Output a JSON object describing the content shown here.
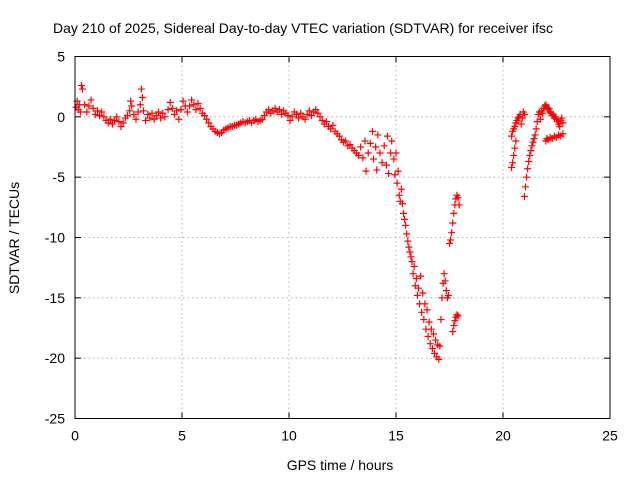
{
  "chart_data": {
    "type": "scatter",
    "title": "Day 210 of 2025, Sidereal Day-to-day VTEC variation (SDTVAR) for receiver ifsc",
    "xlabel": "GPS time / hours",
    "ylabel": "SDTVAR / TECUs",
    "xlim": [
      0,
      25
    ],
    "ylim": [
      -25,
      5
    ],
    "x_ticks": [
      0,
      5,
      10,
      15,
      20,
      25
    ],
    "x_tick_labels": [
      "0",
      "5",
      "10",
      "15",
      "20",
      "25"
    ],
    "y_ticks": [
      -25,
      -20,
      -15,
      -10,
      -5,
      0,
      5
    ],
    "y_tick_labels": [
      "-25",
      "-20",
      "-15",
      "-10",
      "-5",
      "0",
      "5"
    ],
    "grid": true,
    "marker": "+",
    "color": "#ff0000",
    "series": [
      {
        "name": "SDTVAR",
        "points": [
          [
            0.05,
            0.8
          ],
          [
            0.1,
            1.3
          ],
          [
            0.15,
            0.6
          ],
          [
            0.2,
            1.0
          ],
          [
            0.25,
            0.4
          ],
          [
            0.3,
            2.6
          ],
          [
            0.35,
            2.3
          ],
          [
            0.45,
            1.0
          ],
          [
            0.55,
            0.4
          ],
          [
            0.65,
            0.9
          ],
          [
            0.75,
            1.4
          ],
          [
            0.85,
            0.7
          ],
          [
            0.95,
            0.2
          ],
          [
            1.05,
            0.5
          ],
          [
            1.15,
            0.1
          ],
          [
            1.25,
            0.4
          ],
          [
            1.35,
            0.0
          ],
          [
            1.45,
            -0.3
          ],
          [
            1.55,
            -0.5
          ],
          [
            1.65,
            -0.2
          ],
          [
            1.75,
            -0.6
          ],
          [
            1.85,
            -0.3
          ],
          [
            1.95,
            0.0
          ],
          [
            2.05,
            -0.4
          ],
          [
            2.15,
            -0.8
          ],
          [
            2.25,
            -0.5
          ],
          [
            2.35,
            -0.1
          ],
          [
            2.45,
            0.1
          ],
          [
            2.55,
            0.5
          ],
          [
            2.6,
            1.3
          ],
          [
            2.65,
            0.9
          ],
          [
            2.75,
            0.2
          ],
          [
            2.85,
            -0.2
          ],
          [
            2.95,
            0.4
          ],
          [
            3.05,
            1.0
          ],
          [
            3.1,
            2.3
          ],
          [
            3.15,
            1.6
          ],
          [
            3.2,
            0.5
          ],
          [
            3.3,
            -0.3
          ],
          [
            3.4,
            0.2
          ],
          [
            3.5,
            -0.1
          ],
          [
            3.6,
            0.3
          ],
          [
            3.7,
            -0.2
          ],
          [
            3.8,
            0.1
          ],
          [
            3.9,
            0.4
          ],
          [
            4.0,
            -0.1
          ],
          [
            4.1,
            0.3
          ],
          [
            4.2,
            0.0
          ],
          [
            4.35,
            0.6
          ],
          [
            4.45,
            1.2
          ],
          [
            4.55,
            0.7
          ],
          [
            4.65,
            0.2
          ],
          [
            4.75,
            0.5
          ],
          [
            4.85,
            -0.2
          ],
          [
            4.95,
            0.6
          ],
          [
            5.05,
            1.3
          ],
          [
            5.15,
            0.9
          ],
          [
            5.25,
            0.4
          ],
          [
            5.35,
            0.9
          ],
          [
            5.45,
            1.4
          ],
          [
            5.55,
            1.0
          ],
          [
            5.65,
            0.6
          ],
          [
            5.75,
            1.1
          ],
          [
            5.85,
            0.7
          ],
          [
            5.95,
            0.3
          ],
          [
            6.05,
            0.1
          ],
          [
            6.15,
            -0.2
          ],
          [
            6.25,
            -0.5
          ],
          [
            6.35,
            -0.8
          ],
          [
            6.45,
            -1.0
          ],
          [
            6.55,
            -1.2
          ],
          [
            6.65,
            -1.3
          ],
          [
            6.75,
            -1.4
          ],
          [
            6.85,
            -1.3
          ],
          [
            6.95,
            -1.1
          ],
          [
            7.05,
            -1.0
          ],
          [
            7.15,
            -0.9
          ],
          [
            7.25,
            -0.8
          ],
          [
            7.35,
            -0.8
          ],
          [
            7.45,
            -0.7
          ],
          [
            7.55,
            -0.7
          ],
          [
            7.65,
            -0.6
          ],
          [
            7.75,
            -0.5
          ],
          [
            7.85,
            -0.4
          ],
          [
            7.95,
            -0.5
          ],
          [
            8.05,
            -0.4
          ],
          [
            8.15,
            -0.3
          ],
          [
            8.25,
            -0.5
          ],
          [
            8.35,
            -0.3
          ],
          [
            8.45,
            -0.2
          ],
          [
            8.55,
            -0.4
          ],
          [
            8.65,
            -0.3
          ],
          [
            8.75,
            -0.2
          ],
          [
            8.85,
            0.1
          ],
          [
            8.95,
            0.4
          ],
          [
            9.05,
            0.6
          ],
          [
            9.15,
            0.3
          ],
          [
            9.25,
            0.5
          ],
          [
            9.35,
            0.7
          ],
          [
            9.45,
            0.4
          ],
          [
            9.55,
            0.6
          ],
          [
            9.65,
            0.2
          ],
          [
            9.75,
            0.5
          ],
          [
            9.85,
            0.3
          ],
          [
            9.95,
            0.1
          ],
          [
            10.05,
            -0.3
          ],
          [
            10.15,
            0.0
          ],
          [
            10.25,
            0.4
          ],
          [
            10.35,
            0.2
          ],
          [
            10.45,
            -0.1
          ],
          [
            10.55,
            0.3
          ],
          [
            10.65,
            0.0
          ],
          [
            10.75,
            -0.2
          ],
          [
            10.85,
            0.2
          ],
          [
            10.95,
            0.5
          ],
          [
            11.05,
            0.1
          ],
          [
            11.15,
            0.4
          ],
          [
            11.25,
            0.6
          ],
          [
            11.35,
            0.3
          ],
          [
            11.45,
            0.0
          ],
          [
            11.55,
            -0.3
          ],
          [
            11.65,
            -0.6
          ],
          [
            11.75,
            -0.4
          ],
          [
            11.85,
            -0.8
          ],
          [
            11.95,
            -1.0
          ],
          [
            12.05,
            -0.7
          ],
          [
            12.15,
            -1.2
          ],
          [
            12.25,
            -1.4
          ],
          [
            12.35,
            -1.6
          ],
          [
            12.45,
            -1.9
          ],
          [
            12.55,
            -2.1
          ],
          [
            12.65,
            -2.0
          ],
          [
            12.75,
            -2.4
          ],
          [
            12.85,
            -2.3
          ],
          [
            12.95,
            -2.6
          ],
          [
            13.05,
            -2.8
          ],
          [
            13.15,
            -3.0
          ],
          [
            13.25,
            -3.2
          ],
          [
            13.35,
            -2.5
          ],
          [
            13.45,
            -3.4
          ],
          [
            13.55,
            -2.0
          ],
          [
            13.6,
            -4.5
          ],
          [
            13.7,
            -3.0
          ],
          [
            13.8,
            -2.2
          ],
          [
            13.9,
            -1.2
          ],
          [
            13.95,
            -3.5
          ],
          [
            14.05,
            -2.5
          ],
          [
            14.1,
            -4.4
          ],
          [
            14.15,
            -1.5
          ],
          [
            14.25,
            -3.0
          ],
          [
            14.35,
            -3.8
          ],
          [
            14.45,
            -2.4
          ],
          [
            14.55,
            -4.0
          ],
          [
            14.6,
            -1.6
          ],
          [
            14.65,
            -4.7
          ],
          [
            14.75,
            -3.0
          ],
          [
            14.8,
            -2.0
          ],
          [
            14.9,
            -3.5
          ],
          [
            14.95,
            -4.8
          ],
          [
            15.0,
            -3.0
          ],
          [
            15.05,
            -5.5
          ],
          [
            15.1,
            -4.5
          ],
          [
            15.15,
            -6.5
          ],
          [
            15.2,
            -7.0
          ],
          [
            15.25,
            -6.0
          ],
          [
            15.3,
            -7.2
          ],
          [
            15.35,
            -8.0
          ],
          [
            15.4,
            -8.5
          ],
          [
            15.45,
            -9.0
          ],
          [
            15.5,
            -9.7
          ],
          [
            15.55,
            -10.3
          ],
          [
            15.6,
            -10.8
          ],
          [
            15.65,
            -11.2
          ],
          [
            15.7,
            -11.6
          ],
          [
            15.75,
            -12.0
          ],
          [
            15.8,
            -13.0
          ],
          [
            15.85,
            -12.4
          ],
          [
            15.9,
            -14.0
          ],
          [
            15.95,
            -13.4
          ],
          [
            16.0,
            -14.8
          ],
          [
            16.05,
            -14.2
          ],
          [
            16.1,
            -15.5
          ],
          [
            16.15,
            -13.2
          ],
          [
            16.2,
            -16.2
          ],
          [
            16.25,
            -14.6
          ],
          [
            16.3,
            -16.8
          ],
          [
            16.35,
            -15.5
          ],
          [
            16.4,
            -17.6
          ],
          [
            16.45,
            -16.0
          ],
          [
            16.5,
            -18.2
          ],
          [
            16.55,
            -17.0
          ],
          [
            16.6,
            -18.8
          ],
          [
            16.65,
            -17.6
          ],
          [
            16.7,
            -19.2
          ],
          [
            16.75,
            -18.0
          ],
          [
            16.8,
            -19.6
          ],
          [
            16.85,
            -18.5
          ],
          [
            16.9,
            -19.9
          ],
          [
            16.95,
            -18.9
          ],
          [
            17.0,
            -20.1
          ],
          [
            17.05,
            -19.0
          ],
          [
            17.1,
            -16.8
          ],
          [
            17.15,
            -15.0
          ],
          [
            17.2,
            -13.8
          ],
          [
            17.25,
            -13.0
          ],
          [
            17.3,
            -13.6
          ],
          [
            17.35,
            -14.4
          ],
          [
            17.4,
            -15.0
          ],
          [
            17.45,
            -14.8
          ],
          [
            17.5,
            -10.5
          ],
          [
            17.55,
            -10.2
          ],
          [
            17.6,
            -9.6
          ],
          [
            17.65,
            -8.8
          ],
          [
            17.7,
            -8.0
          ],
          [
            17.75,
            -7.3
          ],
          [
            17.8,
            -6.8
          ],
          [
            17.85,
            -6.5
          ],
          [
            17.9,
            -6.7
          ],
          [
            17.95,
            -7.3
          ],
          [
            17.65,
            -17.8
          ],
          [
            17.7,
            -17.3
          ],
          [
            17.75,
            -16.9
          ],
          [
            17.8,
            -16.6
          ],
          [
            17.85,
            -16.4
          ],
          [
            17.9,
            -16.5
          ],
          [
            20.4,
            -4.2
          ],
          [
            20.45,
            -3.8
          ],
          [
            20.5,
            -3.2
          ],
          [
            20.55,
            -2.6
          ],
          [
            20.6,
            -2.0
          ],
          [
            20.4,
            -1.6
          ],
          [
            20.45,
            -1.2
          ],
          [
            20.5,
            -1.0
          ],
          [
            20.55,
            -0.8
          ],
          [
            20.6,
            -0.5
          ],
          [
            20.65,
            -0.3
          ],
          [
            20.7,
            -0.1
          ],
          [
            20.75,
            0.0
          ],
          [
            20.8,
            0.2
          ],
          [
            20.85,
            -0.6
          ],
          [
            20.9,
            -0.1
          ],
          [
            20.95,
            0.4
          ],
          [
            21.0,
            0.2
          ],
          [
            21.0,
            -6.6
          ],
          [
            21.05,
            -5.8
          ],
          [
            21.1,
            -5.0
          ],
          [
            21.15,
            -4.3
          ],
          [
            21.2,
            -3.7
          ],
          [
            21.25,
            -3.2
          ],
          [
            21.3,
            -2.8
          ],
          [
            21.35,
            -2.4
          ],
          [
            21.4,
            -2.1
          ],
          [
            21.45,
            -1.8
          ],
          [
            21.5,
            -1.5
          ],
          [
            21.55,
            -1.0
          ],
          [
            21.6,
            -0.4
          ],
          [
            21.65,
            0.2
          ],
          [
            21.7,
            0.4
          ],
          [
            21.75,
            -0.2
          ],
          [
            21.8,
            0.5
          ],
          [
            21.85,
            0.3
          ],
          [
            21.9,
            0.7
          ],
          [
            21.95,
            0.9
          ],
          [
            22.0,
            1.0
          ],
          [
            22.05,
            0.8
          ],
          [
            22.1,
            0.6
          ],
          [
            22.15,
            0.7
          ],
          [
            22.2,
            0.4
          ],
          [
            22.25,
            0.3
          ],
          [
            22.3,
            0.1
          ],
          [
            22.35,
            0.2
          ],
          [
            22.4,
            -0.1
          ],
          [
            22.45,
            0.0
          ],
          [
            22.5,
            -0.2
          ],
          [
            22.55,
            -0.4
          ],
          [
            22.6,
            -0.6
          ],
          [
            22.65,
            -0.8
          ],
          [
            22.7,
            -0.3
          ],
          [
            22.75,
            -0.1
          ],
          [
            22.8,
            -0.5
          ],
          [
            22.0,
            -2.0
          ],
          [
            22.05,
            -1.8
          ],
          [
            22.1,
            -1.9
          ],
          [
            22.2,
            -1.7
          ],
          [
            22.3,
            -1.8
          ],
          [
            22.4,
            -1.6
          ],
          [
            22.5,
            -1.7
          ],
          [
            22.6,
            -1.5
          ],
          [
            22.7,
            -1.6
          ],
          [
            22.8,
            -1.4
          ]
        ]
      }
    ]
  }
}
